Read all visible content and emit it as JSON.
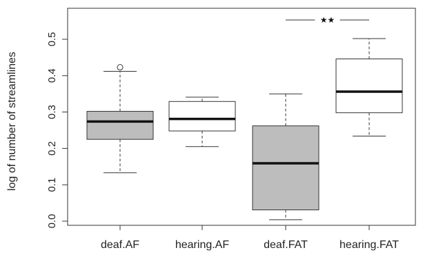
{
  "chart_data": {
    "type": "box",
    "ylabel": "log of number of streamlines",
    "xlabel": "",
    "ylim": [
      -0.02,
      0.57
    ],
    "yticks": [
      0.0,
      0.1,
      0.2,
      0.3,
      0.4,
      0.5
    ],
    "ytick_labels": [
      "0.0",
      "0.1",
      "0.2",
      "0.3",
      "0.4",
      "0.5"
    ],
    "categories": [
      "deaf.AF",
      "hearing.AF",
      "deaf.FAT",
      "hearing.FAT"
    ],
    "boxes": [
      {
        "name": "deaf.AF",
        "min": 0.133,
        "q1": 0.225,
        "median": 0.274,
        "q3": 0.302,
        "max": 0.412,
        "outliers": [
          0.423
        ],
        "fill": "#bdbdbd"
      },
      {
        "name": "hearing.AF",
        "min": 0.205,
        "q1": 0.248,
        "median": 0.281,
        "q3": 0.329,
        "max": 0.341,
        "outliers": [],
        "fill": "#ffffff"
      },
      {
        "name": "deaf.FAT",
        "min": 0.004,
        "q1": 0.031,
        "median": 0.159,
        "q3": 0.262,
        "max": 0.35,
        "outliers": [],
        "fill": "#bdbdbd"
      },
      {
        "name": "hearing.FAT",
        "min": 0.234,
        "q1": 0.298,
        "median": 0.356,
        "q3": 0.446,
        "max": 0.502,
        "outliers": [],
        "fill": "#ffffff"
      }
    ],
    "significance": {
      "between": [
        "deaf.FAT",
        "hearing.FAT"
      ],
      "label": "★★",
      "y": 0.553
    }
  }
}
